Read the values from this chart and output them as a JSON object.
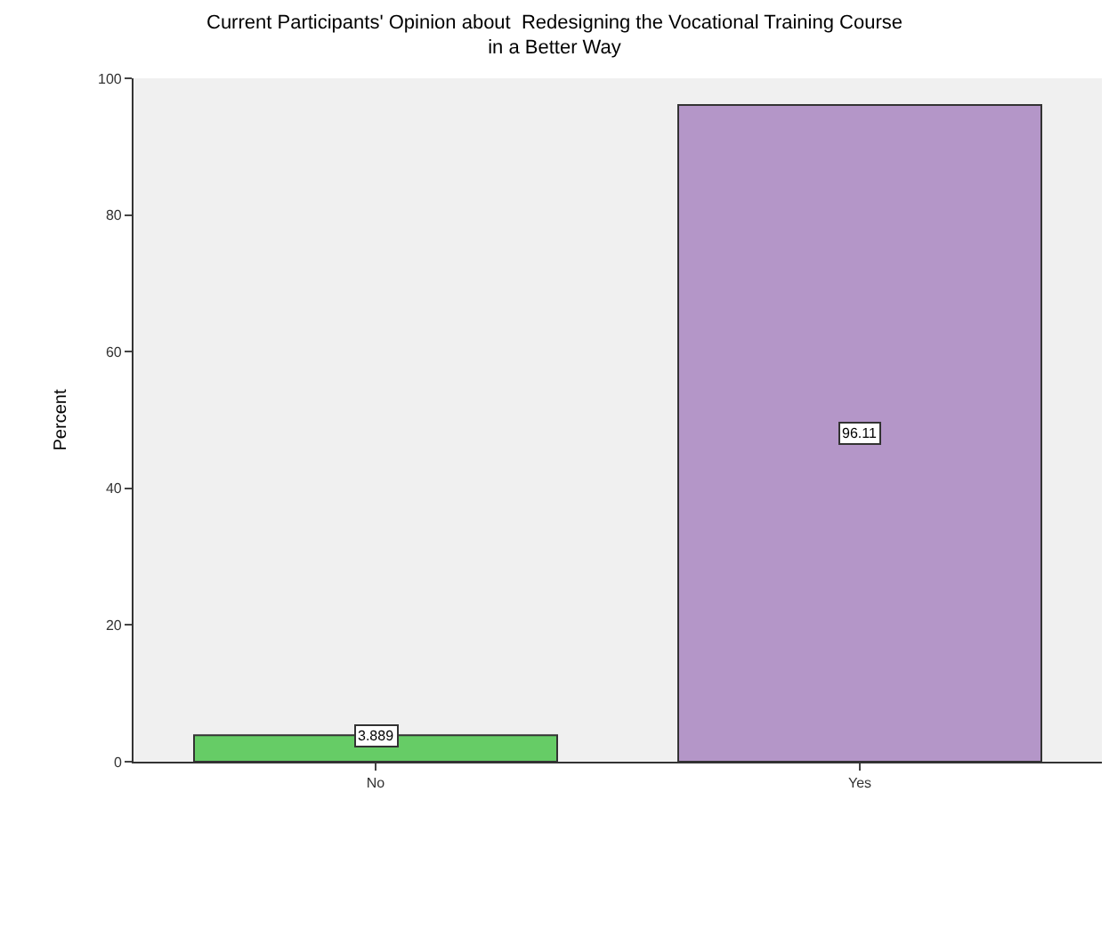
{
  "chart_data": {
    "type": "bar",
    "title": "Current Participants' Opinion about  Redesigning the Vocational Training Course\nin a Better Way",
    "ylabel": "Percent",
    "categories": [
      "No",
      "Yes"
    ],
    "values": [
      3.889,
      96.11
    ],
    "colors": [
      "#66cc66",
      "#b496c8"
    ],
    "ylim": [
      0,
      100
    ],
    "yticks": [
      0,
      20,
      40,
      60,
      80,
      100
    ],
    "data_labels": true,
    "grid": false
  }
}
